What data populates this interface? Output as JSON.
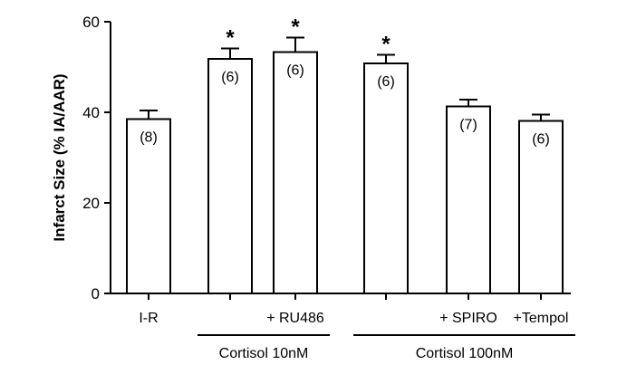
{
  "chart_data": {
    "type": "bar",
    "title": "",
    "xlabel": "",
    "ylabel": "Infarct Size (% IA/AAR)",
    "ylim": [
      0,
      60
    ],
    "yticks": [
      0,
      20,
      40,
      60
    ],
    "categories": [
      "I-R",
      "",
      "+ RU486",
      "",
      "+ SPIRO",
      "+Tempol"
    ],
    "values": [
      38.5,
      51.8,
      53.3,
      50.8,
      41.3,
      38.1
    ],
    "errors": [
      1.9,
      2.3,
      3.2,
      1.9,
      1.5,
      1.4
    ],
    "n_labels": [
      "(8)",
      "(6)",
      "(6)",
      "(6)",
      "(7)",
      "(6)"
    ],
    "significance": [
      "",
      "*",
      "*",
      "*",
      "",
      ""
    ],
    "groups": [
      {
        "label": "Cortisol 10nM",
        "bars": [
          1,
          2
        ]
      },
      {
        "label": "Cortisol 100nM",
        "bars": [
          3,
          4,
          5
        ]
      }
    ],
    "grid": false,
    "legend": "none"
  }
}
